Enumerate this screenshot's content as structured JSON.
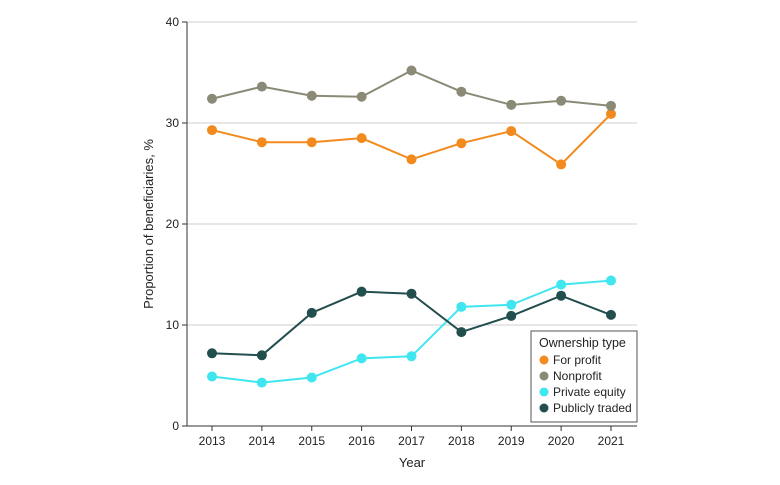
{
  "chart_data": {
    "type": "line",
    "title": "",
    "xlabel": "Year",
    "ylabel": "Proportion of beneficiaries, %",
    "categories": [
      "2013",
      "2014",
      "2015",
      "2016",
      "2017",
      "2018",
      "2019",
      "2020",
      "2021"
    ],
    "ylim": [
      0,
      40
    ],
    "yticks": [
      "0",
      "10",
      "20",
      "30",
      "40"
    ],
    "grid": "horizontal",
    "legend_title": "Ownership type",
    "legend_position": "bottom-right",
    "series": [
      {
        "name": "For profit",
        "color": "#F28A1E",
        "values": [
          29.3,
          28.1,
          28.1,
          28.5,
          26.4,
          28.0,
          29.2,
          25.9,
          30.9
        ]
      },
      {
        "name": "Nonprofit",
        "color": "#8A8A76",
        "values": [
          32.4,
          33.6,
          32.7,
          32.6,
          35.2,
          33.1,
          31.8,
          32.2,
          31.7
        ]
      },
      {
        "name": "Private equity",
        "color": "#3FE6F0",
        "values": [
          4.9,
          4.3,
          4.8,
          6.7,
          6.9,
          11.8,
          12.0,
          14.0,
          14.4
        ]
      },
      {
        "name": "Publicly traded",
        "color": "#234E4E",
        "values": [
          7.2,
          7.0,
          11.2,
          13.3,
          13.1,
          9.3,
          10.9,
          12.9,
          11.0
        ]
      }
    ]
  }
}
